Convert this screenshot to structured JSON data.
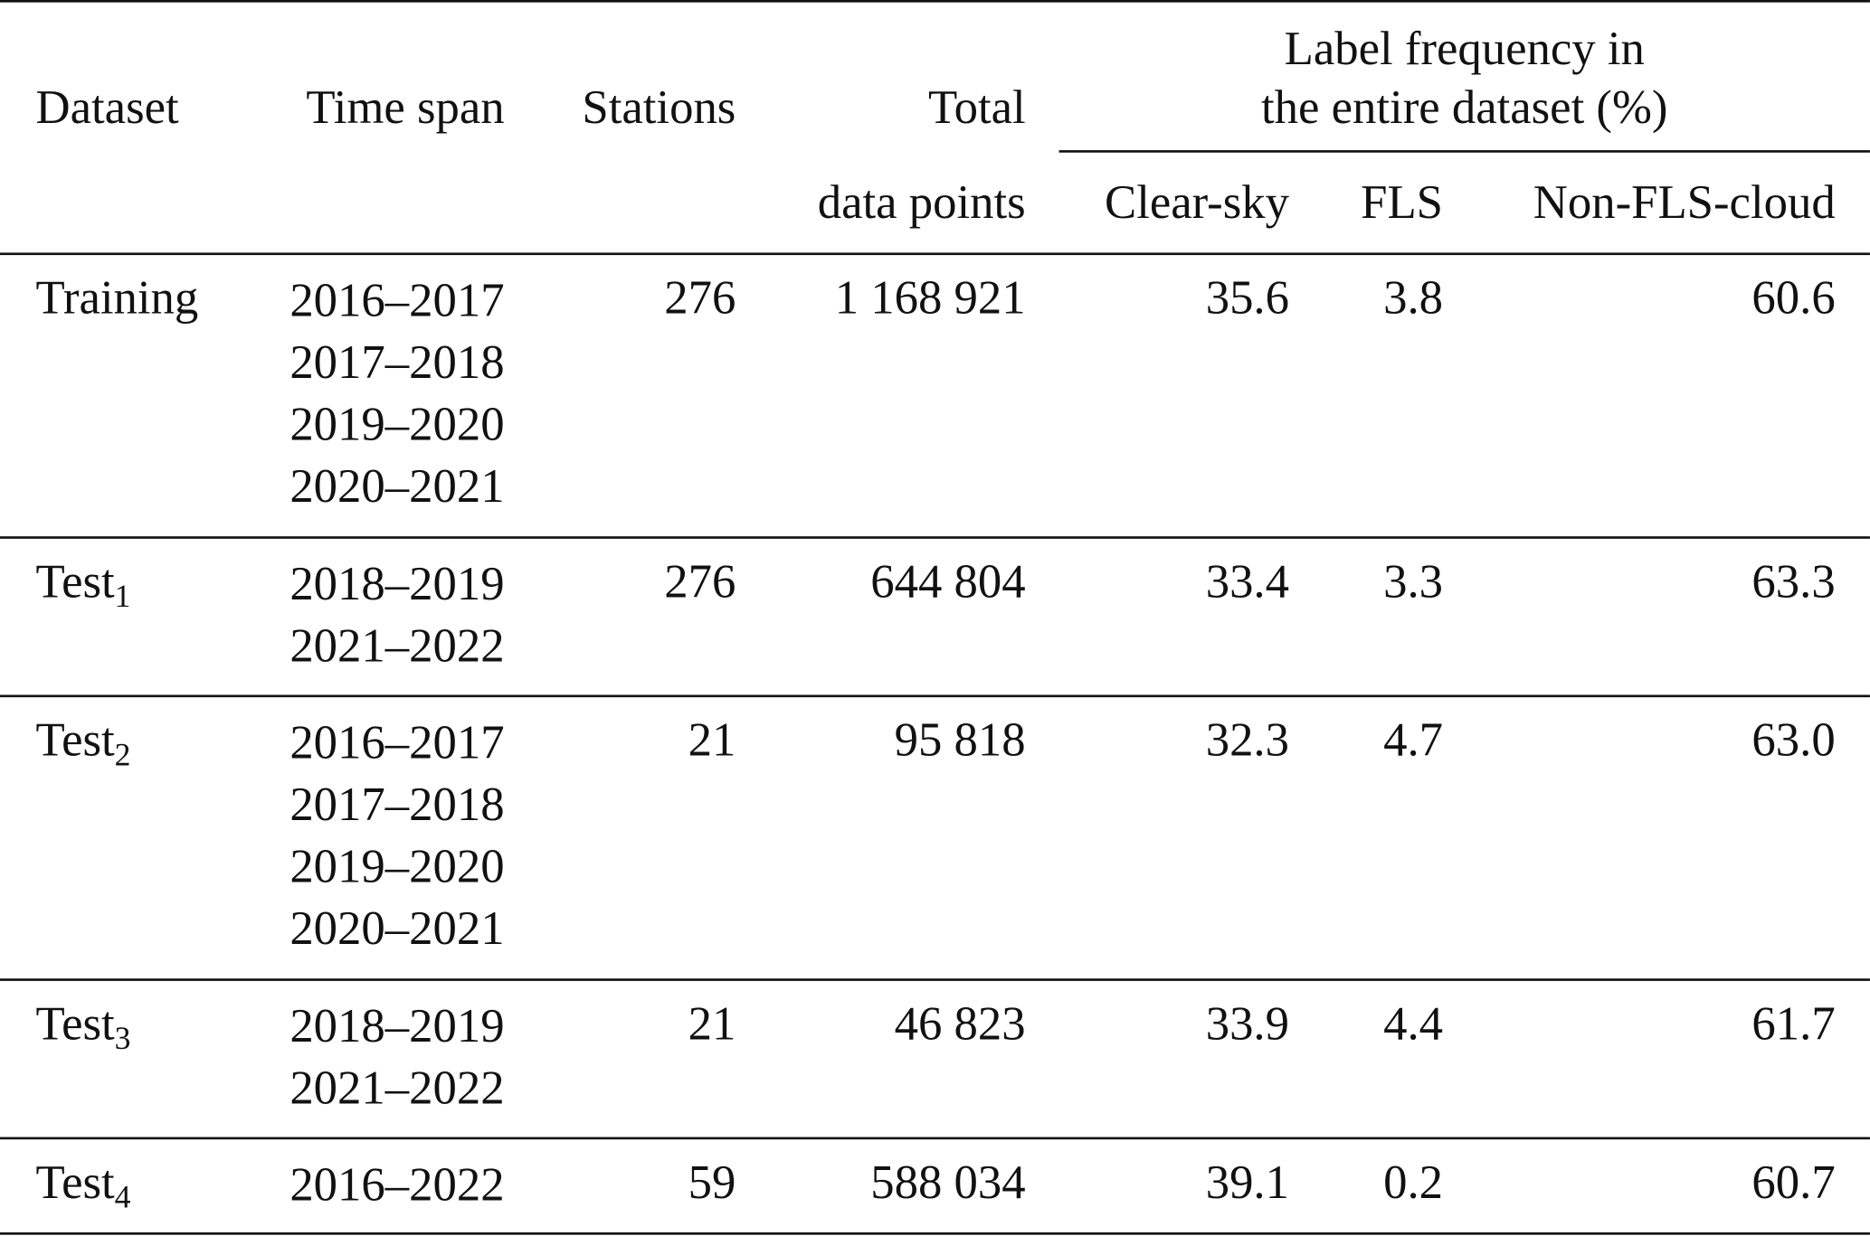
{
  "table": {
    "headers": {
      "dataset": "Dataset",
      "time_span": "Time span",
      "stations": "Stations",
      "total_line1": "Total",
      "total_line2": "data points",
      "group_line1": "Label frequency in",
      "group_line2": "the entire dataset (%)",
      "clear_sky": "Clear-sky",
      "fls": "FLS",
      "non_fls_cloud": "Non-FLS-cloud"
    },
    "rows": [
      {
        "dataset": "Training",
        "dataset_sub": "",
        "time_spans": [
          "2016–2017",
          "2017–2018",
          "2019–2020",
          "2020–2021"
        ],
        "stations": "276",
        "total": "1 168 921",
        "clear_sky": "35.6",
        "fls": "3.8",
        "non_fls_cloud": "60.6"
      },
      {
        "dataset": "Test",
        "dataset_sub": "1",
        "time_spans": [
          "2018–2019",
          "2021–2022"
        ],
        "stations": "276",
        "total": "644 804",
        "clear_sky": "33.4",
        "fls": "3.3",
        "non_fls_cloud": "63.3"
      },
      {
        "dataset": "Test",
        "dataset_sub": "2",
        "time_spans": [
          "2016–2017",
          "2017–2018",
          "2019–2020",
          "2020–2021"
        ],
        "stations": "21",
        "total": "95 818",
        "clear_sky": "32.3",
        "fls": "4.7",
        "non_fls_cloud": "63.0"
      },
      {
        "dataset": "Test",
        "dataset_sub": "3",
        "time_spans": [
          "2018–2019",
          "2021–2022"
        ],
        "stations": "21",
        "total": "46 823",
        "clear_sky": "33.9",
        "fls": "4.4",
        "non_fls_cloud": "61.7"
      },
      {
        "dataset": "Test",
        "dataset_sub": "4",
        "time_spans": [
          "2016–2022"
        ],
        "stations": "59",
        "total": "588 034",
        "clear_sky": "39.1",
        "fls": "0.2",
        "non_fls_cloud": "60.7"
      }
    ]
  }
}
